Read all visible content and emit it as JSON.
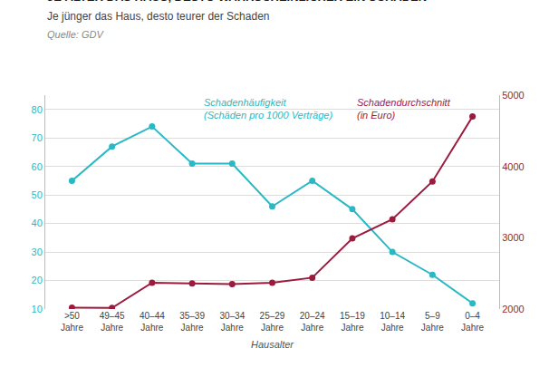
{
  "chart_data": {
    "type": "line",
    "title": "JE ÄLTER DAS HAUS, DESTO WAHRSCHEINLICHER EIN SCHADEN",
    "subtitle": "Je jünger das Haus, desto teurer der Schaden",
    "source": "Quelle: GDV",
    "xlabel": "Hausalter",
    "categories": [
      ">50\nJahre",
      "49–45\nJahre",
      "40–44\nJahre",
      "35–39\nJahre",
      "30–34\nJahre",
      "25–29\nJahre",
      "20–24\nJahre",
      "15–19\nJahre",
      "10–14\nJahre",
      "5–9\nJahre",
      "0–4\nJahre"
    ],
    "series": [
      {
        "name": "Schadenhäufigkeit\n(Schäden pro 1000 Verträge)",
        "color": "#2ab8c4",
        "marker": "circle",
        "values": [
          55,
          67,
          74,
          61,
          61,
          46,
          55,
          45,
          30,
          22,
          12
        ]
      },
      {
        "name": "Schadendurchschnitt\n(in Euro)",
        "color": "#9b1b3e",
        "marker": "circle",
        "axis": "y2",
        "values": [
          2020,
          2016,
          2370,
          2360,
          2350,
          2370,
          2440,
          2990,
          3260,
          3790,
          4700
        ]
      }
    ],
    "ylim": [
      10,
      85
    ],
    "yticks": [
      10,
      20,
      30,
      40,
      50,
      60,
      70,
      80
    ],
    "y2lim": [
      2000,
      5000
    ],
    "y2ticks": [
      2000,
      3000,
      4000,
      5000
    ],
    "grid": true
  }
}
